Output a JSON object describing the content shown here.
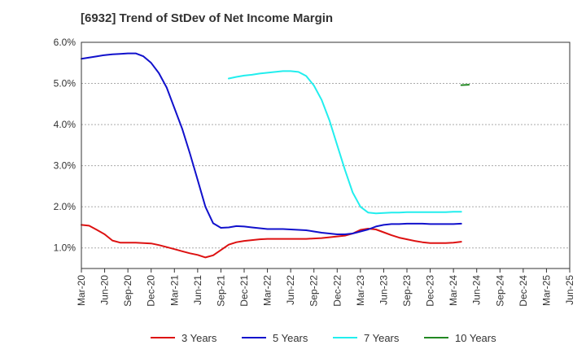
{
  "title": "[6932]  Trend of StDev of Net Income Margin",
  "chart_data": {
    "type": "line",
    "title": "[6932]  Trend of StDev of Net Income Margin",
    "xlabel": "",
    "ylabel": "",
    "x_ticks": [
      "Mar-20",
      "Jun-20",
      "Sep-20",
      "Dec-20",
      "Mar-21",
      "Jun-21",
      "Sep-21",
      "Dec-21",
      "Mar-22",
      "Jun-22",
      "Sep-22",
      "Dec-22",
      "Mar-23",
      "Jun-23",
      "Sep-23",
      "Dec-23",
      "Mar-24",
      "Jun-24",
      "Sep-24",
      "Dec-24",
      "Mar-25",
      "Jun-25"
    ],
    "y_ticks": [
      "1.0%",
      "2.0%",
      "3.0%",
      "4.0%",
      "5.0%",
      "6.0%"
    ],
    "ylim": [
      0.5,
      6.0
    ],
    "y_unit": "%",
    "grid": "horizontal dashed",
    "legend_position": "bottom",
    "series": [
      {
        "name": "3 Years",
        "color": "#dd1111",
        "start_index": 0,
        "values": [
          1.56,
          1.54,
          1.44,
          1.33,
          1.18,
          1.13,
          1.13,
          1.13,
          1.12,
          1.11,
          1.07,
          1.02,
          0.97,
          0.92,
          0.87,
          0.83,
          0.77,
          0.82,
          0.95,
          1.08,
          1.14,
          1.17,
          1.19,
          1.21,
          1.22,
          1.22,
          1.22,
          1.22,
          1.22,
          1.22,
          1.23,
          1.24,
          1.26,
          1.28,
          1.3,
          1.35,
          1.44,
          1.47,
          1.45,
          1.38,
          1.31,
          1.25,
          1.21,
          1.17,
          1.14,
          1.12,
          1.12,
          1.12,
          1.13,
          1.15
        ]
      },
      {
        "name": "5 Years",
        "color": "#1111cc",
        "start_index": 0,
        "values": [
          5.6,
          5.63,
          5.66,
          5.69,
          5.71,
          5.72,
          5.73,
          5.73,
          5.66,
          5.5,
          5.25,
          4.9,
          4.4,
          3.9,
          3.3,
          2.65,
          2.0,
          1.6,
          1.49,
          1.5,
          1.53,
          1.52,
          1.5,
          1.48,
          1.46,
          1.46,
          1.46,
          1.45,
          1.44,
          1.43,
          1.4,
          1.37,
          1.35,
          1.33,
          1.33,
          1.35,
          1.4,
          1.45,
          1.52,
          1.56,
          1.58,
          1.58,
          1.59,
          1.59,
          1.59,
          1.58,
          1.58,
          1.58,
          1.58,
          1.59
        ]
      },
      {
        "name": "7 Years",
        "color": "#22eeee",
        "start_index": 19,
        "values": [
          5.12,
          5.16,
          5.19,
          5.21,
          5.24,
          5.26,
          5.28,
          5.3,
          5.3,
          5.28,
          5.18,
          4.95,
          4.6,
          4.1,
          3.5,
          2.9,
          2.35,
          2.0,
          1.86,
          1.84,
          1.85,
          1.86,
          1.86,
          1.87,
          1.87,
          1.87,
          1.87,
          1.87,
          1.87,
          1.88,
          1.88
        ]
      },
      {
        "name": "10 Years",
        "color": "#228822",
        "start_index": 49,
        "values": [
          4.96,
          4.97
        ]
      }
    ]
  }
}
